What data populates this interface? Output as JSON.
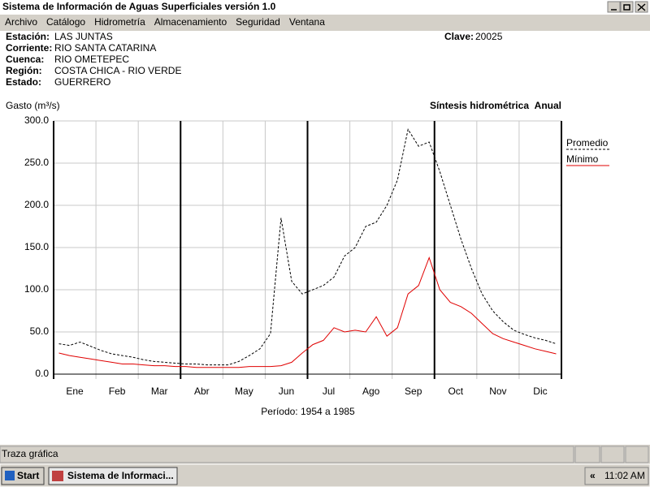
{
  "window": {
    "title": "Sistema de Información de Aguas Superficiales  versión 1.0",
    "menu": [
      "Archivo",
      "Catálogo",
      "Hidrometría",
      "Almacenamiento",
      "Seguridad",
      "Ventana"
    ]
  },
  "station": {
    "fields": [
      {
        "label": "Estación:",
        "value": "LAS JUNTAS"
      },
      {
        "label": "Corriente:",
        "value": "RIO SANTA CATARINA"
      },
      {
        "label": "Cuenca:",
        "value": "RIO OMETEPEC"
      },
      {
        "label": "Región:",
        "value": "COSTA CHICA - RIO VERDE"
      },
      {
        "label": "Estado:",
        "value": "GUERRERO"
      }
    ],
    "clave": {
      "label": "Clave:",
      "value": "20025"
    }
  },
  "chart_data": {
    "type": "line",
    "y_label": "Gasto (m³/s)",
    "title": "Síntesis hidrométrica",
    "subtitle": "Anual",
    "x_label": "Período:  1954 a 1985",
    "categories": [
      null,
      "Ene",
      null,
      null,
      null,
      "Feb",
      null,
      null,
      null,
      "Mar",
      null,
      null,
      null,
      "Abr",
      null,
      null,
      null,
      "May",
      null,
      null,
      null,
      "Jun",
      null,
      null,
      null,
      "Jul",
      null,
      null,
      null,
      "Ago",
      null,
      null,
      null,
      "Sep",
      null,
      null,
      null,
      "Oct",
      null,
      null,
      null,
      "Nov",
      null,
      null,
      null,
      "Dic",
      null,
      null
    ],
    "series": [
      {
        "name": "Promedio",
        "color": "#000000",
        "dashed": true,
        "values": [
          36,
          34,
          38,
          33,
          28,
          24,
          22,
          20,
          17,
          15,
          14,
          13,
          12,
          12,
          11,
          11,
          11,
          15,
          22,
          30,
          48,
          185,
          110,
          95,
          100,
          105,
          115,
          140,
          150,
          175,
          180,
          200,
          230,
          290,
          270,
          275,
          240,
          200,
          160,
          125,
          95,
          75,
          62,
          52,
          47,
          43,
          40,
          36
        ]
      },
      {
        "name": "Mínimo",
        "color": "#e00000",
        "dashed": false,
        "values": [
          25,
          22,
          20,
          18,
          16,
          14,
          12,
          12,
          11,
          10,
          10,
          9,
          9,
          8,
          8,
          8,
          8,
          8,
          9,
          9,
          9,
          10,
          14,
          25,
          35,
          40,
          55,
          50,
          52,
          50,
          68,
          45,
          55,
          95,
          105,
          138,
          100,
          85,
          80,
          72,
          60,
          48,
          42,
          38,
          34,
          30,
          27,
          24
        ]
      }
    ],
    "ylim": [
      0,
      300
    ],
    "yticks": [
      {
        "value": 0,
        "label": "0.0"
      },
      {
        "value": 50,
        "label": "50.0"
      },
      {
        "value": 100,
        "label": "100.0"
      },
      {
        "value": 150,
        "label": "150.0"
      },
      {
        "value": 200,
        "label": "200.0"
      },
      {
        "value": 250,
        "label": "250.0"
      },
      {
        "value": 300,
        "label": "300.0"
      }
    ],
    "grid": true,
    "legend": "right"
  },
  "status_bar": {
    "text": "Traza gráfica"
  },
  "taskbar": {
    "start": "Start",
    "task": "Sistema de Informaci...",
    "tray": "«",
    "time": "11:02 AM"
  }
}
